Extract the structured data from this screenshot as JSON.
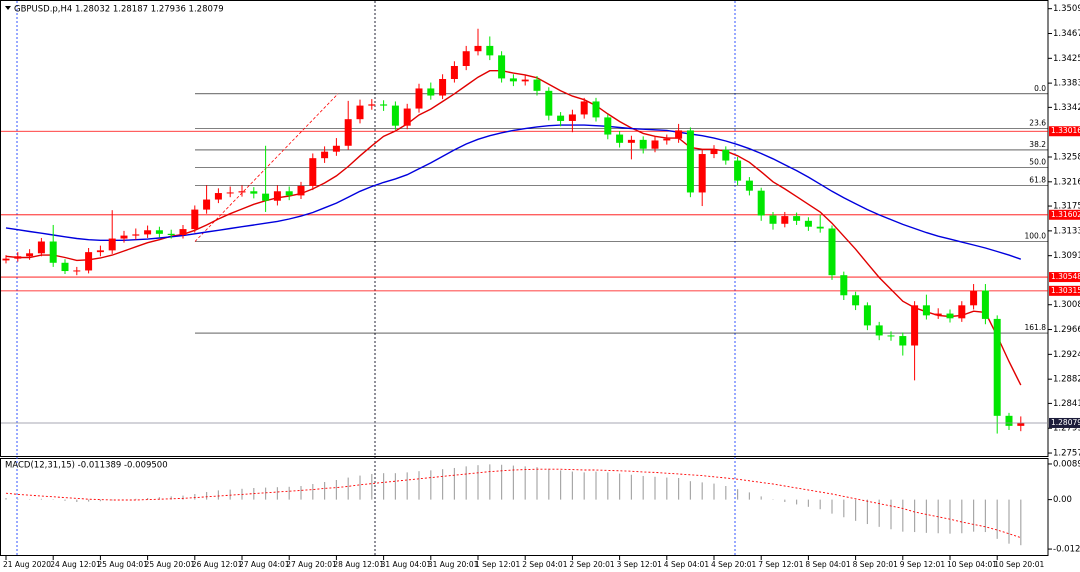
{
  "header": "GBPUSD.p,H4  1.28032 1.28187 1.27936 1.28079",
  "chart_data": [
    {
      "type": "candlestick",
      "categories": [
        "21 Aug 2020",
        null,
        null,
        null,
        "24 Aug 12:01",
        null,
        null,
        null,
        "25 Aug 04:01",
        null,
        null,
        null,
        "25 Aug 20:01",
        null,
        null,
        null,
        "26 Aug 12:01",
        null,
        null,
        null,
        "27 Aug 04:01",
        null,
        null,
        null,
        "27 Aug 20:01",
        null,
        null,
        null,
        "28 Aug 12:01",
        null,
        null,
        null,
        "31 Aug 04:01",
        null,
        null,
        null,
        "31 Aug 20:01",
        null,
        null,
        null,
        "1 Sep 12:01",
        null,
        null,
        null,
        "2 Sep 04:01",
        null,
        null,
        null,
        "2 Sep 20:01",
        null,
        null,
        null,
        "3 Sep 12:01",
        null,
        null,
        null,
        "4 Sep 04:01",
        null,
        null,
        null,
        "4 Sep 20:01",
        null,
        null,
        null,
        "7 Sep 12:01",
        null,
        null,
        null,
        "8 Sep 04:01",
        null,
        null,
        null,
        "8 Sep 20:01",
        null,
        null,
        null,
        "9 Sep 12:01",
        null,
        null,
        null,
        "10 Sep 04:01",
        null,
        null,
        null,
        "10 Sep 20:01",
        null,
        null
      ],
      "open": [
        1.3083,
        1.3086,
        1.309,
        1.3095,
        1.3115,
        1.3079,
        1.3065,
        1.3066,
        1.3097,
        1.31,
        1.312,
        1.3125,
        1.3127,
        1.3134,
        1.3128,
        1.3126,
        1.3136,
        1.3169,
        1.3186,
        1.3197,
        1.3198,
        1.32,
        1.3196,
        1.3184,
        1.32,
        1.3193,
        1.3209,
        1.3256,
        1.3267,
        1.3277,
        1.3322,
        1.3345,
        1.3347,
        1.3345,
        1.3311,
        1.334,
        1.3374,
        1.3362,
        1.339,
        1.3412,
        1.3437,
        1.3446,
        1.343,
        1.3391,
        1.3386,
        1.3389,
        1.337,
        1.3328,
        1.3319,
        1.333,
        1.3352,
        1.3325,
        1.3296,
        1.3282,
        1.3287,
        1.3272,
        1.3286,
        1.3289,
        1.3303,
        1.3198,
        1.3263,
        1.327,
        1.3252,
        1.3218,
        1.3201,
        1.3159,
        1.3145,
        1.3158,
        1.315,
        1.314,
        1.3137,
        1.3058,
        1.3024,
        1.3007,
        1.2973,
        1.2956,
        1.2955,
        1.2939,
        1.3007,
        1.299,
        1.2993,
        1.2985,
        1.3007,
        1.3032,
        1.2984,
        1.282,
        1.2803
      ],
      "high": [
        1.3092,
        1.3097,
        1.3102,
        1.3121,
        1.3143,
        1.3085,
        1.3072,
        1.3104,
        1.3108,
        1.3168,
        1.3133,
        1.3137,
        1.3142,
        1.314,
        1.3135,
        1.3143,
        1.3176,
        1.321,
        1.3205,
        1.3208,
        1.321,
        1.3207,
        1.3277,
        1.321,
        1.3208,
        1.3216,
        1.3264,
        1.3276,
        1.329,
        1.3353,
        1.3355,
        1.3356,
        1.3354,
        1.3352,
        1.3348,
        1.3382,
        1.3384,
        1.3398,
        1.342,
        1.3446,
        1.3475,
        1.3462,
        1.3437,
        1.3398,
        1.3396,
        1.3395,
        1.3376,
        1.3334,
        1.3338,
        1.3358,
        1.3358,
        1.333,
        1.3302,
        1.3294,
        1.3293,
        1.3293,
        1.3296,
        1.3314,
        1.3308,
        1.327,
        1.3278,
        1.3276,
        1.3258,
        1.3224,
        1.3206,
        1.3165,
        1.3165,
        1.3164,
        1.3156,
        1.316,
        1.3142,
        1.3064,
        1.303,
        1.3012,
        1.2979,
        1.2963,
        1.2961,
        1.3014,
        1.3025,
        1.3002,
        1.3,
        1.3014,
        1.3043,
        1.3043,
        1.299,
        1.2825,
        1.2819
      ],
      "low": [
        1.3078,
        1.3081,
        1.3084,
        1.309,
        1.3072,
        1.306,
        1.3058,
        1.3061,
        1.309,
        1.3094,
        1.3113,
        1.3118,
        1.3121,
        1.3122,
        1.312,
        1.312,
        1.313,
        1.3162,
        1.318,
        1.319,
        1.3191,
        1.3188,
        1.3165,
        1.3176,
        1.3185,
        1.3187,
        1.3202,
        1.3248,
        1.326,
        1.327,
        1.3315,
        1.3338,
        1.3336,
        1.3304,
        1.3305,
        1.3333,
        1.3355,
        1.3356,
        1.3384,
        1.3405,
        1.343,
        1.3422,
        1.3384,
        1.3378,
        1.3379,
        1.3362,
        1.332,
        1.331,
        1.33,
        1.3323,
        1.3318,
        1.3288,
        1.3274,
        1.3254,
        1.3264,
        1.3266,
        1.3279,
        1.3282,
        1.319,
        1.3175,
        1.3256,
        1.3245,
        1.321,
        1.3193,
        1.315,
        1.3135,
        1.3139,
        1.3143,
        1.3133,
        1.313,
        1.305,
        1.3016,
        1.2999,
        1.2965,
        1.2948,
        1.2947,
        1.2922,
        1.288,
        1.2983,
        1.2984,
        1.2978,
        1.2979,
        1.3,
        1.2975,
        1.279,
        1.2796,
        1.2794
      ],
      "close": [
        1.3086,
        1.309,
        1.3095,
        1.3115,
        1.3079,
        1.3065,
        1.3066,
        1.3097,
        1.31,
        1.312,
        1.3125,
        1.3127,
        1.3134,
        1.3128,
        1.3126,
        1.3136,
        1.3169,
        1.3186,
        1.3197,
        1.3198,
        1.32,
        1.3196,
        1.3184,
        1.32,
        1.3193,
        1.3209,
        1.3256,
        1.3267,
        1.3277,
        1.3322,
        1.3345,
        1.3347,
        1.3345,
        1.3311,
        1.334,
        1.3374,
        1.3362,
        1.339,
        1.3412,
        1.3437,
        1.3446,
        1.343,
        1.3391,
        1.3386,
        1.3389,
        1.337,
        1.3328,
        1.3319,
        1.333,
        1.3352,
        1.3325,
        1.3296,
        1.3282,
        1.3287,
        1.3272,
        1.3286,
        1.3289,
        1.3303,
        1.3198,
        1.3263,
        1.327,
        1.3252,
        1.3218,
        1.3201,
        1.3159,
        1.3145,
        1.3158,
        1.315,
        1.314,
        1.3137,
        1.3058,
        1.3024,
        1.3007,
        1.2973,
        1.2956,
        1.2955,
        1.2939,
        1.3007,
        1.299,
        1.2993,
        1.2985,
        1.3007,
        1.3032,
        1.2984,
        1.282,
        1.2803,
        1.2808
      ],
      "up_color": "#ff0000",
      "down_color": "#00e600",
      "lines": [
        {
          "color": "#e00000",
          "values": [
            1.309,
            1.3088,
            1.3088,
            1.3092,
            1.3092,
            1.3088,
            1.3083,
            1.3084,
            1.3087,
            1.3092,
            1.3099,
            1.3106,
            1.3113,
            1.3118,
            1.3124,
            1.3127,
            1.3134,
            1.3143,
            1.3153,
            1.3162,
            1.317,
            1.3178,
            1.3184,
            1.3189,
            1.3192,
            1.3196,
            1.3204,
            1.3214,
            1.3226,
            1.3242,
            1.326,
            1.3277,
            1.3293,
            1.3302,
            1.3314,
            1.3329,
            1.3339,
            1.3352,
            1.3365,
            1.3379,
            1.3393,
            1.3404,
            1.3404,
            1.34,
            1.3397,
            1.3392,
            1.3381,
            1.337,
            1.3361,
            1.3355,
            1.3345,
            1.3331,
            1.3318,
            1.3307,
            1.3298,
            1.3293,
            1.329,
            1.329,
            1.3274,
            1.3271,
            1.3271,
            1.3268,
            1.326,
            1.3249,
            1.3233,
            1.3216,
            1.3204,
            1.3191,
            1.3178,
            1.3165,
            1.3146,
            1.3124,
            1.3102,
            1.3078,
            1.3054,
            1.3034,
            1.3014,
            1.3003,
            1.2996,
            1.299,
            1.2988,
            1.299,
            1.2997,
            1.2995,
            1.2955,
            1.2912,
            1.2872
          ]
        },
        {
          "color": "#0000dd",
          "values": [
            1.3138,
            1.3135,
            1.3132,
            1.3129,
            1.3126,
            1.3123,
            1.312,
            1.3118,
            1.3117,
            1.3117,
            1.3117,
            1.3118,
            1.3119,
            1.3121,
            1.3123,
            1.3125,
            1.3128,
            1.3131,
            1.3134,
            1.3137,
            1.314,
            1.3143,
            1.3146,
            1.3149,
            1.3153,
            1.3158,
            1.3164,
            1.3172,
            1.318,
            1.319,
            1.32,
            1.3208,
            1.3215,
            1.3221,
            1.3228,
            1.3238,
            1.3248,
            1.3259,
            1.327,
            1.328,
            1.3288,
            1.3294,
            1.3299,
            1.3303,
            1.3306,
            1.3309,
            1.3311,
            1.3312,
            1.3312,
            1.3312,
            1.3311,
            1.331,
            1.3308,
            1.3306,
            1.3305,
            1.3304,
            1.3303,
            1.33,
            1.3297,
            1.3294,
            1.329,
            1.3285,
            1.3279,
            1.3272,
            1.3264,
            1.3255,
            1.3245,
            1.3235,
            1.3224,
            1.3212,
            1.32,
            1.3189,
            1.3179,
            1.3169,
            1.316,
            1.3152,
            1.3144,
            1.3137,
            1.313,
            1.3124,
            1.3119,
            1.3114,
            1.3109,
            1.3104,
            1.3098,
            1.3092,
            1.3085
          ]
        }
      ],
      "levels": [
        {
          "value": 1.33016,
          "label": "1.33016"
        },
        {
          "value": 1.31602,
          "label": "1.31602"
        },
        {
          "value": 1.30548,
          "label": "1.30548"
        },
        {
          "value": 1.30315,
          "label": "1.30315"
        }
      ],
      "level_color": "#ff0000",
      "last_price": {
        "value": 1.28079,
        "label": "1.28079"
      },
      "fibonacci": {
        "color": "#000000",
        "trend_color": "#ff0000",
        "levels": [
          {
            "value": 1.3365,
            "label": "0.0"
          },
          {
            "value": 1.3306,
            "label": "23.6"
          },
          {
            "value": 1.327,
            "label": "38.2"
          },
          {
            "value": 1.324,
            "label": "50.0"
          },
          {
            "value": 1.321,
            "label": "61.8"
          },
          {
            "value": 1.3115,
            "label": "100.0"
          },
          {
            "value": 1.296,
            "label": "161.8"
          }
        ]
      },
      "ylim": [
        1.2752,
        1.3522
      ],
      "yticks": [
        {
          "value": 1.3509,
          "label": "1.35090"
        },
        {
          "value": 1.3467,
          "label": "1.34670"
        },
        {
          "value": 1.3425,
          "label": "1.34250"
        },
        {
          "value": 1.3383,
          "label": "1.33830"
        },
        {
          "value": 1.3342,
          "label": "1.33420"
        },
        {
          "value": 1.3258,
          "label": "1.32580"
        },
        {
          "value": 1.3216,
          "label": "1.32160"
        },
        {
          "value": 1.3175,
          "label": "1.31750"
        },
        {
          "value": 1.3133,
          "label": "1.31330"
        },
        {
          "value": 1.3091,
          "label": "1.30910"
        },
        {
          "value": 1.3008,
          "label": "1.30080"
        },
        {
          "value": 1.2966,
          "label": "1.29660"
        },
        {
          "value": 1.2924,
          "label": "1.29240"
        },
        {
          "value": 1.2882,
          "label": "1.28820"
        },
        {
          "value": 1.2841,
          "label": "1.28410"
        },
        {
          "value": 1.2799,
          "label": "1.27990"
        },
        {
          "value": 1.2757,
          "label": "1.27570"
        }
      ]
    },
    {
      "type": "macd",
      "title": "MACD(12,31,15) -0.011389 -0.009500",
      "values": [
        0.0004,
        0.0002,
        0.0001,
        0.0002,
        0.0001,
        -0.0003,
        -0.0006,
        -0.0005,
        -0.0004,
        -0.0002,
        0.0,
        0.0002,
        0.0004,
        0.0006,
        0.0008,
        0.001,
        0.0014,
        0.0019,
        0.0023,
        0.0025,
        0.0027,
        0.0029,
        0.003,
        0.0031,
        0.0032,
        0.0034,
        0.0039,
        0.0044,
        0.0049,
        0.0055,
        0.006,
        0.0064,
        0.0066,
        0.0066,
        0.0068,
        0.0071,
        0.0073,
        0.0076,
        0.0079,
        0.0083,
        0.0086,
        0.0088,
        0.0087,
        0.0085,
        0.0083,
        0.0081,
        0.0077,
        0.0073,
        0.007,
        0.0068,
        0.007,
        0.0068,
        0.0065,
        0.0062,
        0.0059,
        0.0057,
        0.0055,
        0.0054,
        0.0046,
        0.0043,
        0.004,
        0.0034,
        0.0026,
        0.0018,
        0.0008,
        -0.0001,
        -0.0006,
        -0.0012,
        -0.0018,
        -0.0024,
        -0.0035,
        -0.0044,
        -0.0053,
        -0.0061,
        -0.0068,
        -0.0074,
        -0.008,
        -0.0081,
        -0.0083,
        -0.0084,
        -0.0085,
        -0.0084,
        -0.008,
        -0.0081,
        -0.0098,
        -0.011,
        -0.011389
      ],
      "signal": [
        0.0016,
        0.0013,
        0.0011,
        0.0009,
        0.0007,
        0.0005,
        0.0003,
        0.0001,
        0.0,
        -0.0001,
        -0.0001,
        -0.0001,
        0.0,
        0.0001,
        0.0002,
        0.0003,
        0.0005,
        0.0007,
        0.0009,
        0.0011,
        0.0013,
        0.0015,
        0.0017,
        0.0019,
        0.0021,
        0.0023,
        0.0025,
        0.0028,
        0.003,
        0.0033,
        0.0037,
        0.004,
        0.0043,
        0.0046,
        0.0049,
        0.0052,
        0.0055,
        0.0058,
        0.0061,
        0.0064,
        0.0067,
        0.007,
        0.0072,
        0.0074,
        0.0075,
        0.0076,
        0.0076,
        0.0076,
        0.0075,
        0.0074,
        0.0074,
        0.0073,
        0.0072,
        0.0071,
        0.0069,
        0.0068,
        0.0066,
        0.0064,
        0.0062,
        0.006,
        0.0057,
        0.0054,
        0.0051,
        0.0047,
        0.0043,
        0.0039,
        0.0034,
        0.0029,
        0.0024,
        0.0019,
        0.0014,
        0.0008,
        0.0002,
        -0.0004,
        -0.001,
        -0.0016,
        -0.0022,
        -0.0031,
        -0.0037,
        -0.0043,
        -0.0049,
        -0.0056,
        -0.0062,
        -0.0068,
        -0.0076,
        -0.0085,
        -0.0095
      ],
      "color": "#a8a8a8",
      "signal_color": "#ff0000",
      "ylim": [
        -0.01408,
        0.01014
      ],
      "yticks": [
        {
          "value": 0.008901,
          "label": "0.008901"
        },
        {
          "value": 0,
          "label": "0.00"
        },
        {
          "value": -0.01235,
          "label": "-0.01235"
        }
      ]
    }
  ]
}
